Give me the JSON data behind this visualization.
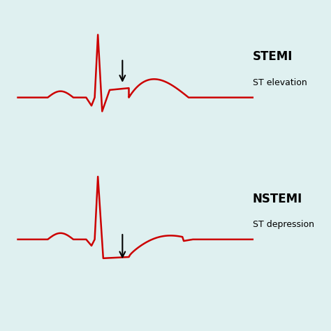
{
  "background_color": "#dff0f0",
  "ecg_color": "#cc0000",
  "ecg_linewidth": 1.8,
  "text_color": "#000000",
  "stemi_label": "STEMI",
  "stemi_sublabel": "ST elevation",
  "nstemi_label": "NSTEMI",
  "nstemi_sublabel": "ST depression",
  "fig_width": 4.74,
  "fig_height": 4.74,
  "dpi": 100
}
